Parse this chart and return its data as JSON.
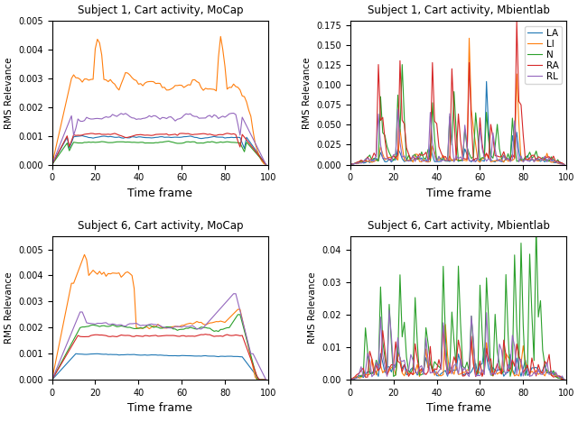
{
  "titles": [
    "Subject 1, Cart activity, MoCap",
    "Subject 1, Cart activity, Mbientlab",
    "Subject 6, Cart activity, MoCap",
    "Subject 6, Cart activity, Mbientlab"
  ],
  "ylabel": "RMS Relevance",
  "xlabel": "Time frame",
  "colors": {
    "LA": "#1f77b4",
    "LI": "#ff7f0e",
    "N": "#2ca02c",
    "RA": "#d62728",
    "RL": "#9467bd"
  },
  "legend_labels": [
    "LA",
    "LI",
    "N",
    "RA",
    "RL"
  ]
}
